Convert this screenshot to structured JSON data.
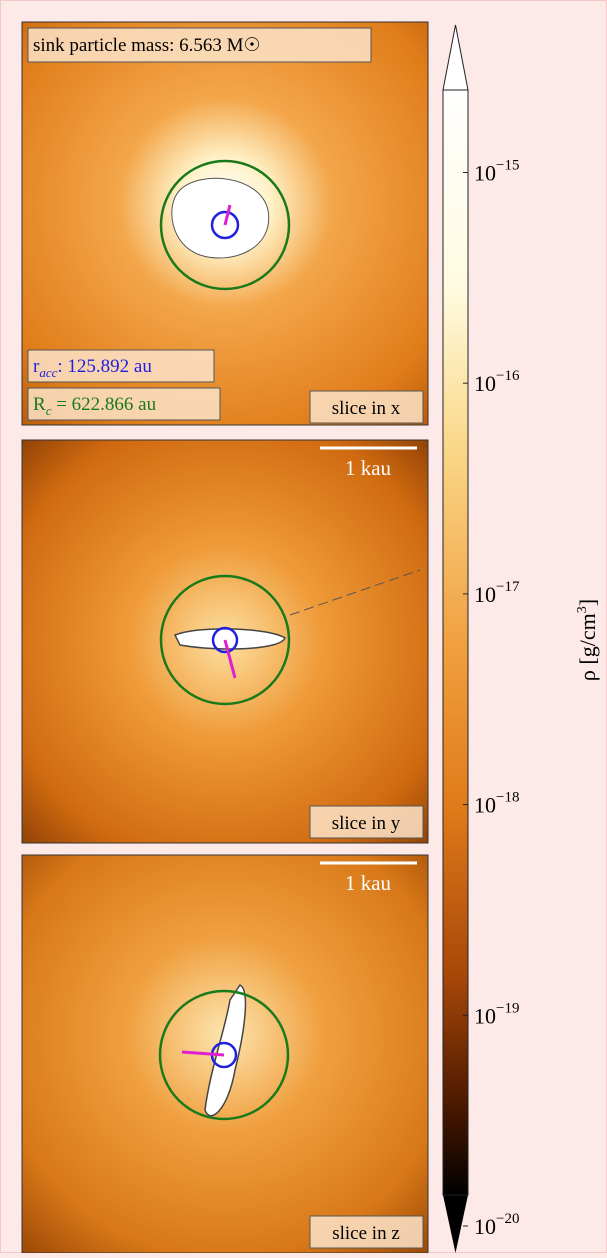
{
  "panels": [
    {
      "mass_label": "sink particle mass: 6.563 M☉",
      "racc": {
        "symbol": "r",
        "subscript": "acc",
        "text": ": 125.892 au"
      },
      "rc": {
        "symbol": "R",
        "subscript": "c",
        "text": " = 622.866 au"
      },
      "slice": "slice in x"
    },
    {
      "scale_bar": "1 kau",
      "slice": "slice in y"
    },
    {
      "scale_bar": "1 kau",
      "slice": "slice in z"
    }
  ],
  "colorbar": {
    "log_scale": true,
    "tick_base": "10",
    "lim": [
      -20,
      -14.3
    ],
    "ticks": [
      {
        "value": -15,
        "label": "−15"
      },
      {
        "value": -16,
        "label": "−16"
      },
      {
        "value": -17,
        "label": "−17"
      },
      {
        "value": -18,
        "label": "−18"
      },
      {
        "value": -19,
        "label": "−19"
      },
      {
        "value": -20,
        "label": "−20"
      }
    ],
    "label": {
      "text": "ρ [g/cm",
      "superscript": "3",
      "end": "]"
    }
  }
}
